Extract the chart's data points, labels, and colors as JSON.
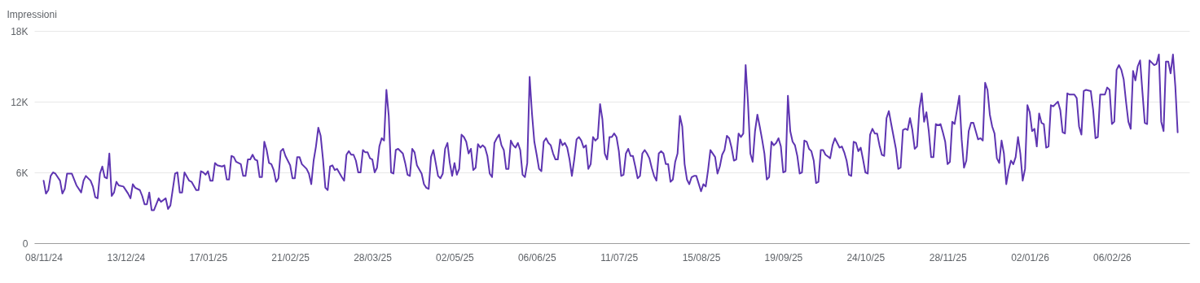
{
  "chart_data": {
    "type": "line",
    "ylabel": "Impressioni",
    "x": [
      "2024-11-08",
      "2024-11-09",
      "2024-11-10",
      "2024-11-11",
      "2024-11-12",
      "2024-11-13",
      "2024-11-15",
      "2024-11-16",
      "2024-11-17",
      "2024-11-18",
      "2024-11-20",
      "2024-11-22",
      "2024-11-24",
      "2024-11-25",
      "2024-11-26",
      "2024-11-28",
      "2024-11-29",
      "2024-11-30",
      "2024-12-01",
      "2024-12-02",
      "2024-12-03",
      "2024-12-04",
      "2024-12-05",
      "2024-12-06",
      "2024-12-07",
      "2024-12-08",
      "2024-12-09",
      "2024-12-10",
      "2024-12-12",
      "2024-12-14",
      "2024-12-15",
      "2024-12-16",
      "2024-12-17",
      "2024-12-19",
      "2024-12-20",
      "2024-12-21",
      "2024-12-22",
      "2024-12-23",
      "2024-12-24",
      "2024-12-25",
      "2024-12-27",
      "2024-12-28",
      "2024-12-30",
      "2024-12-31",
      "2025-01-01",
      "2025-01-03",
      "2025-01-04",
      "2025-01-05",
      "2025-01-06",
      "2025-01-07",
      "2025-01-09",
      "2025-01-10",
      "2025-01-12",
      "2025-01-13",
      "2025-01-14",
      "2025-01-15",
      "2025-01-16",
      "2025-01-17",
      "2025-01-18",
      "2025-01-19",
      "2025-01-20",
      "2025-01-21",
      "2025-01-23",
      "2025-01-24",
      "2025-01-25",
      "2025-01-26",
      "2025-01-27",
      "2025-01-28",
      "2025-01-29",
      "2025-01-31",
      "2025-02-01",
      "2025-02-02",
      "2025-02-03",
      "2025-02-04",
      "2025-02-05",
      "2025-02-06",
      "2025-02-07",
      "2025-02-08",
      "2025-02-09",
      "2025-02-10",
      "2025-02-11",
      "2025-02-12",
      "2025-02-13",
      "2025-02-14",
      "2025-02-15",
      "2025-02-16",
      "2025-02-17",
      "2025-02-18",
      "2025-02-19",
      "2025-02-21",
      "2025-02-22",
      "2025-02-23",
      "2025-02-24",
      "2025-02-25",
      "2025-02-26",
      "2025-02-28",
      "2025-03-01",
      "2025-03-02",
      "2025-03-03",
      "2025-03-04",
      "2025-03-05",
      "2025-03-06",
      "2025-03-07",
      "2025-03-08",
      "2025-03-09",
      "2025-03-10",
      "2025-03-11",
      "2025-03-12",
      "2025-03-13",
      "2025-03-15",
      "2025-03-16",
      "2025-03-17",
      "2025-03-18",
      "2025-03-19",
      "2025-03-20",
      "2025-03-21",
      "2025-03-22",
      "2025-03-23",
      "2025-03-24",
      "2025-03-25",
      "2025-03-26",
      "2025-03-27",
      "2025-03-28",
      "2025-03-29",
      "2025-03-30",
      "2025-03-31",
      "2025-04-01",
      "2025-04-02",
      "2025-04-03",
      "2025-04-04",
      "2025-04-05",
      "2025-04-06",
      "2025-04-07",
      "2025-04-08",
      "2025-04-10",
      "2025-04-11",
      "2025-04-12",
      "2025-04-13",
      "2025-04-14",
      "2025-04-15",
      "2025-04-16",
      "2025-04-18",
      "2025-04-19",
      "2025-04-20",
      "2025-04-21",
      "2025-04-22",
      "2025-04-23",
      "2025-04-24",
      "2025-04-25",
      "2025-04-26",
      "2025-04-27",
      "2025-04-28",
      "2025-04-29",
      "2025-04-30",
      "2025-05-01",
      "2025-05-02",
      "2025-05-03",
      "2025-05-04",
      "2025-05-05",
      "2025-05-06",
      "2025-05-07",
      "2025-05-08",
      "2025-05-09",
      "2025-05-10",
      "2025-05-11",
      "2025-05-12",
      "2025-05-13",
      "2025-05-14",
      "2025-05-15",
      "2025-05-16",
      "2025-05-17",
      "2025-05-18",
      "2025-05-19",
      "2025-05-20",
      "2025-05-21",
      "2025-05-22",
      "2025-05-23",
      "2025-05-24",
      "2025-05-25",
      "2025-05-26",
      "2025-05-27",
      "2025-05-28",
      "2025-05-29",
      "2025-05-30",
      "2025-05-31",
      "2025-06-01",
      "2025-06-02",
      "2025-06-03",
      "2025-06-04",
      "2025-06-05",
      "2025-06-06",
      "2025-06-07",
      "2025-06-08",
      "2025-06-09",
      "2025-06-10",
      "2025-06-11",
      "2025-06-12",
      "2025-06-13",
      "2025-06-14",
      "2025-06-15",
      "2025-06-16",
      "2025-06-17",
      "2025-06-18",
      "2025-06-19",
      "2025-06-20",
      "2025-06-21",
      "2025-06-22",
      "2025-06-23",
      "2025-06-24",
      "2025-06-25",
      "2025-06-26",
      "2025-06-27",
      "2025-06-28",
      "2025-06-29",
      "2025-06-30",
      "2025-07-01",
      "2025-07-02",
      "2025-07-03",
      "2025-07-04",
      "2025-07-05",
      "2025-07-06",
      "2025-07-07",
      "2025-07-08",
      "2025-07-09",
      "2025-07-10",
      "2025-07-11",
      "2025-07-12",
      "2025-07-13",
      "2025-07-14",
      "2025-07-15",
      "2025-07-16",
      "2025-07-17",
      "2025-07-18",
      "2025-07-19",
      "2025-07-20",
      "2025-07-21",
      "2025-07-22",
      "2025-07-23",
      "2025-07-24",
      "2025-07-25",
      "2025-07-26",
      "2025-07-27",
      "2025-07-28",
      "2025-07-29",
      "2025-07-30",
      "2025-07-31",
      "2025-08-01",
      "2025-08-02",
      "2025-08-03",
      "2025-08-04",
      "2025-08-05",
      "2025-08-06",
      "2025-08-07",
      "2025-08-08",
      "2025-08-09",
      "2025-08-10",
      "2025-08-11",
      "2025-08-12",
      "2025-08-13",
      "2025-08-15",
      "2025-08-16",
      "2025-08-17",
      "2025-08-18",
      "2025-08-19",
      "2025-08-21",
      "2025-08-22",
      "2025-08-23",
      "2025-08-24",
      "2025-08-25",
      "2025-08-26",
      "2025-08-27",
      "2025-08-28",
      "2025-08-29",
      "2025-08-30",
      "2025-08-31",
      "2025-09-01",
      "2025-09-02",
      "2025-09-03",
      "2025-09-04",
      "2025-09-05",
      "2025-09-06",
      "2025-09-07",
      "2025-09-08",
      "2025-09-09",
      "2025-09-10",
      "2025-09-11",
      "2025-09-12",
      "2025-09-13",
      "2025-09-14",
      "2025-09-15",
      "2025-09-16",
      "2025-09-17",
      "2025-09-18",
      "2025-09-19",
      "2025-09-20",
      "2025-09-21",
      "2025-09-22",
      "2025-09-23",
      "2025-09-24",
      "2025-09-25",
      "2025-09-26",
      "2025-09-27",
      "2025-09-28",
      "2025-09-29",
      "2025-09-30",
      "2025-10-01",
      "2025-10-02",
      "2025-10-03",
      "2025-10-04",
      "2025-10-05",
      "2025-10-06",
      "2025-10-07",
      "2025-10-09",
      "2025-10-10",
      "2025-10-11",
      "2025-10-12",
      "2025-10-13",
      "2025-10-14",
      "2025-10-15",
      "2025-10-16",
      "2025-10-17",
      "2025-10-18",
      "2025-10-19",
      "2025-10-20",
      "2025-10-21",
      "2025-10-22",
      "2025-10-23",
      "2025-10-24",
      "2025-10-25",
      "2025-10-26",
      "2025-10-27",
      "2025-10-28",
      "2025-10-29",
      "2025-10-30",
      "2025-10-31",
      "2025-11-01",
      "2025-11-02",
      "2025-11-03",
      "2025-11-04",
      "2025-11-06",
      "2025-11-07",
      "2025-11-08",
      "2025-11-09",
      "2025-11-10",
      "2025-11-11",
      "2025-11-12",
      "2025-11-13",
      "2025-11-14",
      "2025-11-15",
      "2025-11-16",
      "2025-11-17",
      "2025-11-18",
      "2025-11-19",
      "2025-11-20",
      "2025-11-21",
      "2025-11-22",
      "2025-11-23",
      "2025-11-24",
      "2025-11-25",
      "2025-11-26",
      "2025-11-27",
      "2025-11-28",
      "2025-11-29",
      "2025-11-30",
      "2025-12-01",
      "2025-12-02",
      "2025-12-03",
      "2025-12-04",
      "2025-12-05",
      "2025-12-06",
      "2025-12-07",
      "2025-12-08",
      "2025-12-09",
      "2025-12-10",
      "2025-12-11",
      "2025-12-12",
      "2025-12-13",
      "2025-12-14",
      "2025-12-15",
      "2025-12-16",
      "2025-12-17",
      "2025-12-18",
      "2025-12-19",
      "2025-12-20",
      "2025-12-21",
      "2025-12-22",
      "2025-12-23",
      "2025-12-24",
      "2025-12-25",
      "2025-12-26",
      "2025-12-27",
      "2025-12-28",
      "2025-12-29",
      "2025-12-30",
      "2025-12-31",
      "2026-01-01",
      "2026-01-02",
      "2026-01-03",
      "2026-01-04",
      "2026-01-05",
      "2026-01-06",
      "2026-01-07",
      "2026-01-08",
      "2026-01-09",
      "2026-01-10",
      "2026-01-11",
      "2026-01-12",
      "2026-01-13",
      "2026-01-14",
      "2026-01-15",
      "2026-01-16",
      "2026-01-17",
      "2026-01-18",
      "2026-01-19",
      "2026-01-20",
      "2026-01-21",
      "2026-01-22",
      "2026-01-23",
      "2026-01-24",
      "2026-01-25",
      "2026-01-26",
      "2026-01-28",
      "2026-01-29",
      "2026-01-30",
      "2026-01-31",
      "2026-02-01",
      "2026-02-02",
      "2026-02-03",
      "2026-02-04",
      "2026-02-05",
      "2026-02-06",
      "2026-02-07",
      "2026-02-08",
      "2026-02-09",
      "2026-02-10",
      "2026-02-11",
      "2026-02-12",
      "2026-02-13",
      "2026-02-14",
      "2026-02-15",
      "2026-02-16",
      "2026-02-17",
      "2026-02-18",
      "2026-02-19",
      "2026-02-20",
      "2026-02-21",
      "2026-02-22",
      "2026-02-23",
      "2026-02-24",
      "2026-02-25",
      "2026-02-26",
      "2026-02-27",
      "2026-02-28",
      "2026-03-01",
      "2026-03-02",
      "2026-03-03",
      "2026-03-04",
      "2026-03-05",
      "2026-03-06"
    ],
    "series": [
      {
        "color": "#5e35b1",
        "values": [
          5300,
          4200,
          4500,
          5700,
          6000,
          5900,
          5300,
          4200,
          4600,
          5900,
          5900,
          4900,
          4300,
          5300,
          5700,
          5300,
          4800,
          3900,
          3800,
          5900,
          6500,
          5600,
          5500,
          7600,
          4000,
          4300,
          5200,
          4900,
          4800,
          4200,
          3800,
          5000,
          4700,
          4500,
          4000,
          3300,
          3300,
          4300,
          2800,
          2800,
          3800,
          3500,
          3800,
          2900,
          3200,
          5900,
          6000,
          4300,
          4300,
          6000,
          5300,
          5200,
          4500,
          4500,
          6100,
          6000,
          5800,
          6100,
          5300,
          5300,
          6800,
          6600,
          6500,
          6600,
          5400,
          5400,
          7400,
          7300,
          6900,
          6700,
          5700,
          5700,
          7100,
          7100,
          7500,
          7100,
          7000,
          5600,
          5600,
          8600,
          7900,
          6800,
          6700,
          6200,
          5200,
          5500,
          7800,
          8000,
          7400,
          6600,
          5500,
          5500,
          7300,
          7300,
          6700,
          6300,
          5900,
          5000,
          7000,
          8200,
          9800,
          9100,
          7100,
          4700,
          4500,
          6500,
          6600,
          6200,
          6300,
          5600,
          5300,
          7500,
          7800,
          7500,
          7500,
          7000,
          6000,
          6000,
          7900,
          7700,
          7700,
          7200,
          7100,
          6000,
          6400,
          8200,
          8900,
          8700,
          13000,
          10800,
          6000,
          5900,
          7900,
          8000,
          7600,
          6800,
          5800,
          5700,
          8000,
          7700,
          6600,
          5900,
          5000,
          4700,
          4600,
          7300,
          7900,
          6800,
          5700,
          5500,
          5900,
          8000,
          8500,
          6800,
          5700,
          6800,
          5800,
          6300,
          9200,
          9000,
          8600,
          7600,
          8000,
          6200,
          6400,
          8400,
          8100,
          8300,
          8100,
          7400,
          5900,
          5600,
          8500,
          8900,
          9200,
          8300,
          7900,
          6300,
          6300,
          8700,
          8300,
          8100,
          8500,
          7900,
          5800,
          5600,
          6800,
          14100,
          11000,
          8600,
          7500,
          6300,
          6100,
          8600,
          8900,
          8500,
          8300,
          7600,
          7100,
          7100,
          8800,
          8300,
          8500,
          8100,
          7100,
          5700,
          7100,
          8800,
          9000,
          8700,
          8100,
          8300,
          6300,
          6700,
          9000,
          8700,
          8900,
          11800,
          10500,
          7600,
          7100,
          9000,
          9000,
          9300,
          9000,
          7800,
          5700,
          5800,
          7600,
          8000,
          7400,
          7400,
          6500,
          5500,
          5700,
          7600,
          7900,
          7600,
          7200,
          6400,
          5700,
          5300,
          7600,
          7800,
          7600,
          6700,
          6700,
          5200,
          5400,
          6900,
          7600,
          10800,
          9900,
          6700,
          5400,
          5000,
          5600,
          5700,
          5700,
          4400,
          5000,
          4800,
          6200,
          7900,
          7300,
          5900,
          6500,
          7500,
          7900,
          9100,
          8900,
          8100,
          7000,
          7100,
          9300,
          9000,
          9300,
          15100,
          11900,
          7600,
          6900,
          9500,
          10900,
          9900,
          8800,
          7600,
          5400,
          5600,
          8600,
          8300,
          8500,
          8900,
          8200,
          6000,
          6100,
          12500,
          9500,
          8600,
          8300,
          7400,
          5900,
          6000,
          8700,
          8600,
          8000,
          7800,
          7000,
          5100,
          5200,
          7900,
          7900,
          7500,
          7200,
          8300,
          8900,
          8500,
          8100,
          8200,
          7700,
          7000,
          5800,
          5700,
          8600,
          8500,
          7800,
          8100,
          7100,
          6000,
          5900,
          9200,
          9700,
          9300,
          9300,
          8300,
          7500,
          7400,
          10600,
          11200,
          10100,
          8000,
          6300,
          6400,
          9600,
          9700,
          9600,
          10600,
          9600,
          8000,
          8200,
          11400,
          12700,
          10300,
          11100,
          9500,
          7300,
          7300,
          10100,
          10000,
          10100,
          9400,
          8600,
          6700,
          6900,
          10300,
          10100,
          11300,
          12500,
          8800,
          6400,
          7000,
          9500,
          10200,
          10200,
          9500,
          8800,
          8900,
          8700,
          13600,
          13000,
          10900,
          9900,
          9300,
          7200,
          6800,
          8700,
          7600,
          5000,
          6200,
          7000,
          6700,
          7300,
          9000,
          7600,
          5300,
          6300,
          11700,
          11100,
          9500,
          9700,
          8200,
          11000,
          10200,
          10100,
          8100,
          8200,
          11700,
          11600,
          11800,
          12000,
          11300,
          9400,
          9300,
          12700,
          12600,
          12600,
          12600,
          12300,
          9900,
          9200,
          12900,
          13000,
          12900,
          11300,
          8900,
          9000,
          12600,
          12600,
          12600,
          13200,
          13000,
          10100,
          10300,
          14700,
          15100,
          14700,
          13900,
          12000,
          10300,
          9700,
          14600,
          13800,
          15000,
          15500,
          12800,
          10200,
          10100,
          15500,
          15300,
          15100,
          15200,
          16000,
          10300,
          9500,
          15400,
          15400,
          14400,
          16000,
          13300,
          9400
        ]
      }
    ],
    "xlim": [
      "2024-11-04",
      "2026-03-11"
    ],
    "xticks": [
      {
        "value": "2024-11-08",
        "label": "08/11/24"
      },
      {
        "value": "2024-12-13",
        "label": "13/12/24"
      },
      {
        "value": "2025-01-17",
        "label": "17/01/25"
      },
      {
        "value": "2025-02-21",
        "label": "21/02/25"
      },
      {
        "value": "2025-03-28",
        "label": "28/03/25"
      },
      {
        "value": "2025-05-02",
        "label": "02/05/25"
      },
      {
        "value": "2025-06-06",
        "label": "06/06/25"
      },
      {
        "value": "2025-07-11",
        "label": "11/07/25"
      },
      {
        "value": "2025-08-15",
        "label": "15/08/25"
      },
      {
        "value": "2025-09-19",
        "label": "19/09/25"
      },
      {
        "value": "2025-10-24",
        "label": "24/10/25"
      },
      {
        "value": "2025-11-28",
        "label": "28/11/25"
      },
      {
        "value": "2026-01-02",
        "label": "02/01/26"
      },
      {
        "value": "2026-02-06",
        "label": "06/02/26"
      }
    ],
    "ylim": [
      0,
      18000
    ],
    "yticks": [
      0,
      {
        "value": 6000,
        "label": "6K"
      },
      {
        "value": 12000,
        "label": "12K"
      },
      {
        "value": 18000,
        "label": "18K"
      }
    ],
    "grid": "y",
    "marker": "none",
    "line_style": "solid"
  }
}
